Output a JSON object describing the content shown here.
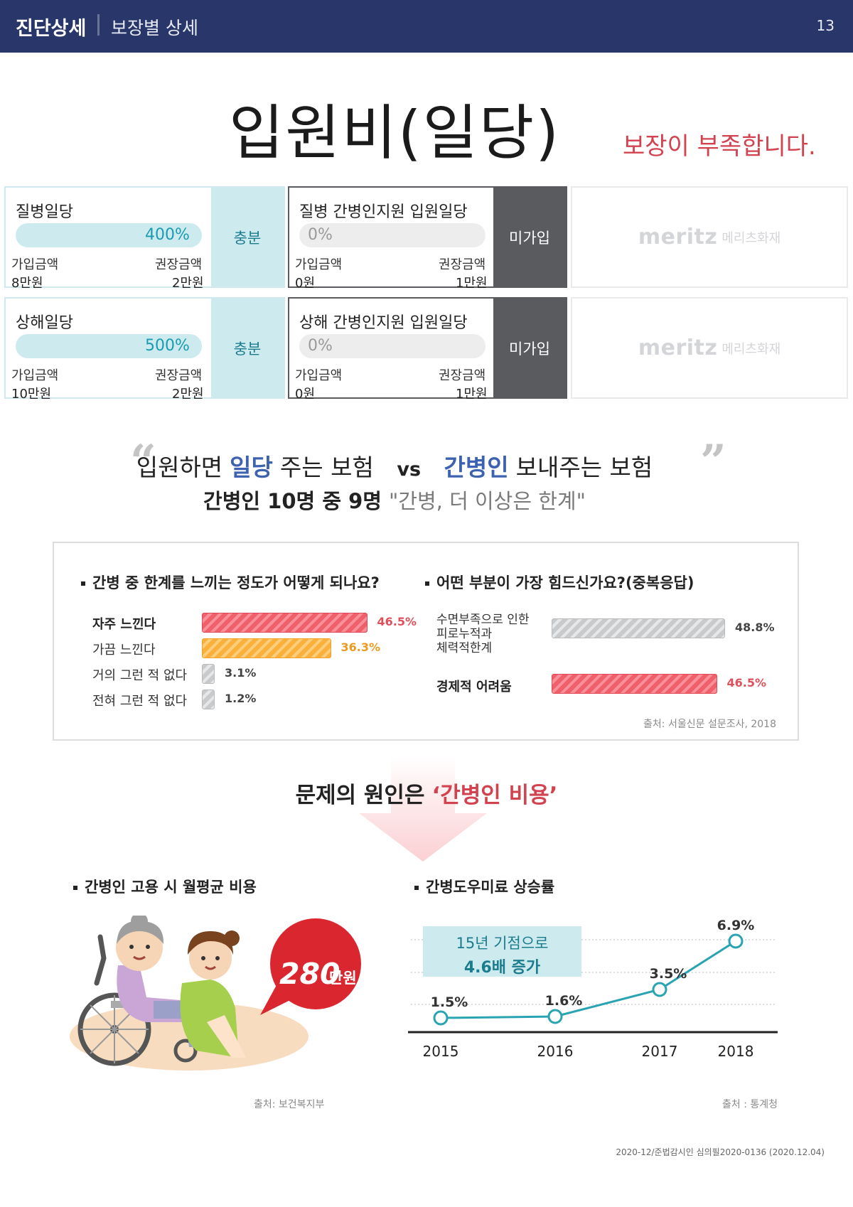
{
  "header": {
    "section": "진단상세",
    "subsection": "보장별 상세",
    "page_number": "13"
  },
  "title": "입원비(일당)",
  "status": "보장이 부족합니다.",
  "cards": [
    {
      "name": "질병일당",
      "percent": "400%",
      "fill": 1.0,
      "enrolled_label": "가입금액",
      "recommended_label": "권장금액",
      "enrolled": "8만원",
      "recommended": "2만원",
      "status": "충분",
      "type": "ok"
    },
    {
      "name": "질병 간병인지원 입원일당",
      "percent": "0%",
      "fill": 0,
      "enrolled_label": "가입금액",
      "recommended_label": "권장금액",
      "enrolled": "0원",
      "recommended": "1만원",
      "status": "미가입",
      "type": "miss"
    },
    {
      "name": "상해일당",
      "percent": "500%",
      "fill": 1.0,
      "enrolled_label": "가입금액",
      "recommended_label": "권장금액",
      "enrolled": "10만원",
      "recommended": "2만원",
      "status": "충분",
      "type": "ok"
    },
    {
      "name": "상해 간병인지원 입원일당",
      "percent": "0%",
      "fill": 0,
      "enrolled_label": "가입금액",
      "recommended_label": "권장금액",
      "enrolled": "0원",
      "recommended": "1만원",
      "status": "미가입",
      "type": "miss"
    }
  ],
  "logo": {
    "brand": "meritz",
    "name": "메리츠화재"
  },
  "comparison": {
    "left_pre": "입원하면",
    "left_hl": "일당",
    "left_post": "주는 보험",
    "vs": "vs",
    "right_hl": "간병인",
    "right_post": "보내주는 보험",
    "sub_bold": "간병인 10명 중 9명",
    "sub_quote": "\"간병, 더 이상은 한계\""
  },
  "survey": {
    "q1": "간병 중 한계를 느끼는 정도가 어떻게 되나요?",
    "q1_items": [
      {
        "label": "자주 느낀다",
        "value": 46.5,
        "display": "46.5%",
        "color": "red",
        "bold": true
      },
      {
        "label": "가끔 느낀다",
        "value": 36.3,
        "display": "36.3%",
        "color": "orange",
        "bold": false
      },
      {
        "label": "거의 그런 적 없다",
        "value": 3.1,
        "display": "3.1%",
        "color": "gray",
        "bold": false
      },
      {
        "label": "전혀 그런 적 없다",
        "value": 1.2,
        "display": "1.2%",
        "color": "gray",
        "bold": false
      }
    ],
    "q2": "어떤 부분이 가장 힘드신가요?(중복응답)",
    "q2_items": [
      {
        "label_lines": [
          "수면부족으로 인한",
          "피로누적과",
          "체력적한계"
        ],
        "value": 48.8,
        "display": "48.8%",
        "color": "gray",
        "bold": false
      },
      {
        "label_lines": [
          "경제적 어려움"
        ],
        "value": 46.5,
        "display": "46.5%",
        "color": "red",
        "bold": true
      }
    ],
    "source": "출처: 서울신문 설문조사, 2018"
  },
  "cause": {
    "prefix": "문제의 원인은",
    "highlight": "‘간병인 비용’"
  },
  "cost": {
    "title": "간병인 고용 시 월평균 비용",
    "amount": "280",
    "unit": "만원",
    "source": "출처: 보건복지부"
  },
  "chart_data": {
    "type": "line",
    "title": "간병도우미료 상승률",
    "x": [
      "2015",
      "2016",
      "2017",
      "2018"
    ],
    "values": [
      1.5,
      1.6,
      3.5,
      6.9
    ],
    "labels": [
      "1.5%",
      "1.6%",
      "3.5%",
      "6.9%"
    ],
    "ylim": [
      0,
      8
    ],
    "annotation": [
      "15년 기점으로",
      "4.6배 증가"
    ],
    "source": "출처 : 통계청",
    "colors": {
      "line": "#2aa3b3",
      "grid": "#bdbdbd"
    }
  },
  "footnote": "2020-12/준법감시인 심의필2020-0136 (2020.12.04)",
  "colors": {
    "navy": "#28366a",
    "teal": "#cdebef",
    "red": "#d2424f",
    "blue": "#3c62b0"
  }
}
